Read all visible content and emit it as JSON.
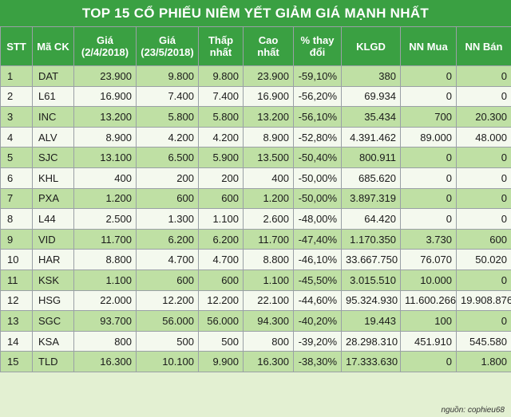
{
  "title": "TOP 15 CỔ PHIẾU NIÊM YẾT GIẢM GIÁ MẠNH NHẤT",
  "columns": [
    {
      "line1": "STT",
      "line2": ""
    },
    {
      "line1": "Mã CK",
      "line2": ""
    },
    {
      "line1": "Giá",
      "line2": "(2/4/2018)"
    },
    {
      "line1": "Giá",
      "line2": "(23/5/2018)"
    },
    {
      "line1": "Thấp",
      "line2": "nhất"
    },
    {
      "line1": "Cao",
      "line2": "nhất"
    },
    {
      "line1": "% thay",
      "line2": "đổi"
    },
    {
      "line1": "KLGD",
      "line2": ""
    },
    {
      "line1": "NN Mua",
      "line2": ""
    },
    {
      "line1": "NN Bán",
      "line2": ""
    }
  ],
  "rows": [
    [
      "1",
      "DAT",
      "23.900",
      "9.800",
      "9.800",
      "23.900",
      "-59,10%",
      "380",
      "0",
      "0"
    ],
    [
      "2",
      "L61",
      "16.900",
      "7.400",
      "7.400",
      "16.900",
      "-56,20%",
      "69.934",
      "0",
      "0"
    ],
    [
      "3",
      "INC",
      "13.200",
      "5.800",
      "5.800",
      "13.200",
      "-56,10%",
      "35.434",
      "700",
      "20.300"
    ],
    [
      "4",
      "ALV",
      "8.900",
      "4.200",
      "4.200",
      "8.900",
      "-52,80%",
      "4.391.462",
      "89.000",
      "48.000"
    ],
    [
      "5",
      "SJC",
      "13.100",
      "6.500",
      "5.900",
      "13.500",
      "-50,40%",
      "800.911",
      "0",
      "0"
    ],
    [
      "6",
      "KHL",
      "400",
      "200",
      "200",
      "400",
      "-50,00%",
      "685.620",
      "0",
      "0"
    ],
    [
      "7",
      "PXA",
      "1.200",
      "600",
      "600",
      "1.200",
      "-50,00%",
      "3.897.319",
      "0",
      "0"
    ],
    [
      "8",
      "L44",
      "2.500",
      "1.300",
      "1.100",
      "2.600",
      "-48,00%",
      "64.420",
      "0",
      "0"
    ],
    [
      "9",
      "VID",
      "11.700",
      "6.200",
      "6.200",
      "11.700",
      "-47,40%",
      "1.170.350",
      "3.730",
      "600"
    ],
    [
      "10",
      "HAR",
      "8.800",
      "4.700",
      "4.700",
      "8.800",
      "-46,10%",
      "33.667.750",
      "76.070",
      "50.020"
    ],
    [
      "11",
      "KSK",
      "1.100",
      "600",
      "600",
      "1.100",
      "-45,50%",
      "3.015.510",
      "10.000",
      "0"
    ],
    [
      "12",
      "HSG",
      "22.000",
      "12.200",
      "12.200",
      "22.100",
      "-44,60%",
      "95.324.930",
      "11.600.266",
      "19.908.876"
    ],
    [
      "13",
      "SGC",
      "93.700",
      "56.000",
      "56.000",
      "94.300",
      "-40,20%",
      "19.443",
      "100",
      "0"
    ],
    [
      "14",
      "KSA",
      "800",
      "500",
      "500",
      "800",
      "-39,20%",
      "28.298.310",
      "451.910",
      "545.580"
    ],
    [
      "15",
      "TLD",
      "16.300",
      "10.100",
      "9.900",
      "16.300",
      "-38,30%",
      "17.333.630",
      "0",
      "1.800"
    ]
  ],
  "source": "nguồn: cophieu68",
  "colors": {
    "header_green": "#3aa042",
    "row_green": "#bfe0a4",
    "row_light": "#f4f9ee",
    "background": "#e3f0d2"
  }
}
